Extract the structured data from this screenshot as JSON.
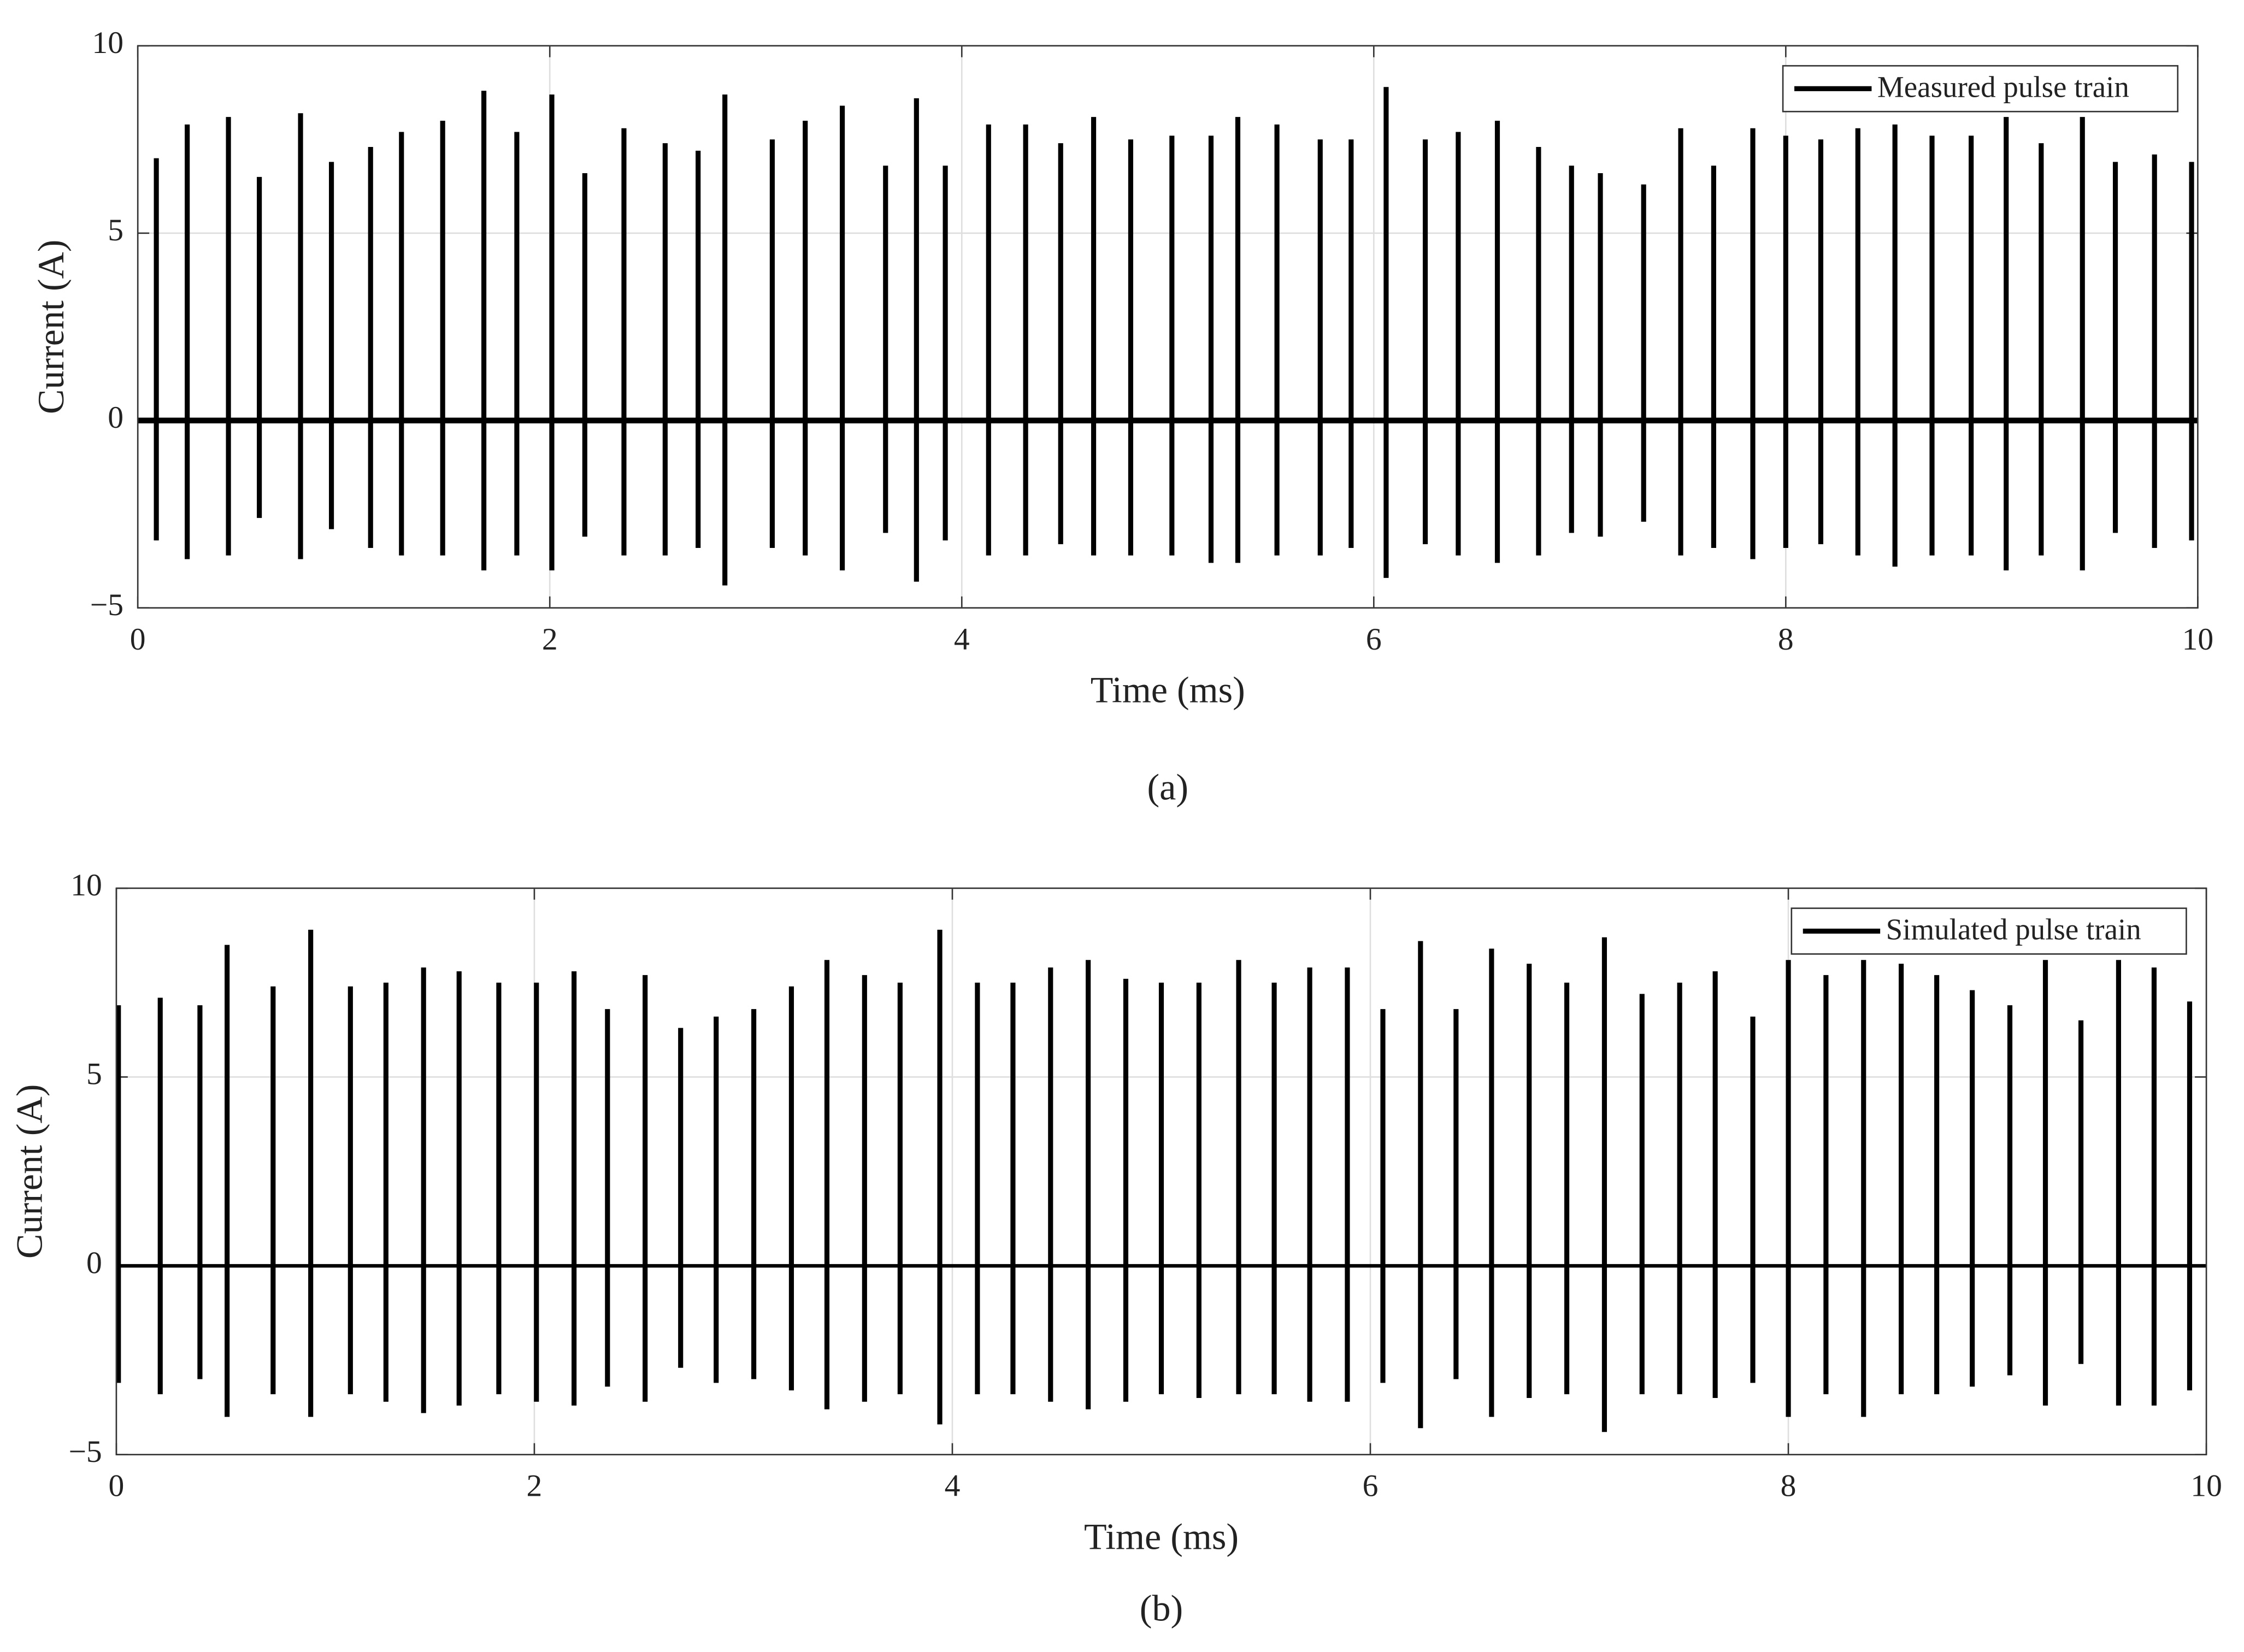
{
  "chart_data": [
    {
      "type": "pulse",
      "caption": "(a)",
      "xlabel": "Time (ms)",
      "ylabel": "Current (A)",
      "xlim": [
        0,
        10
      ],
      "xticks": [
        0,
        2,
        4,
        6,
        8,
        10
      ],
      "ylim": [
        -5,
        10
      ],
      "yticks": [
        {
          "value": -5,
          "label": "−5"
        },
        0,
        5,
        10
      ],
      "grid": true,
      "legend": "upper right",
      "x": [
        0.09,
        0.24,
        0.44,
        0.59,
        0.79,
        0.94,
        1.13,
        1.28,
        1.48,
        1.68,
        1.84,
        2.01,
        2.17,
        2.36,
        2.56,
        2.72,
        2.85,
        3.08,
        3.24,
        3.42,
        3.63,
        3.78,
        3.92,
        4.13,
        4.31,
        4.48,
        4.64,
        4.82,
        5.02,
        5.21,
        5.34,
        5.53,
        5.74,
        5.89,
        6.06,
        6.25,
        6.41,
        6.6,
        6.8,
        6.96,
        7.1,
        7.31,
        7.49,
        7.65,
        7.84,
        8.0,
        8.17,
        8.35,
        8.53,
        8.71,
        8.9,
        9.07,
        9.24,
        9.44,
        9.6,
        9.79,
        9.97
      ],
      "series": [
        {
          "name": "Measured pulse train",
          "color": "#000000",
          "values": [
            7.0,
            7.9,
            8.1,
            6.5,
            8.2,
            6.9,
            7.3,
            7.7,
            8.0,
            8.8,
            7.7,
            8.7,
            6.6,
            7.8,
            7.4,
            7.2,
            8.7,
            7.5,
            8.0,
            8.4,
            6.8,
            8.6,
            6.8,
            7.9,
            7.9,
            7.4,
            8.1,
            7.5,
            7.6,
            7.6,
            8.1,
            7.9,
            7.5,
            7.5,
            8.9,
            7.5,
            7.7,
            8.0,
            7.3,
            6.8,
            6.6,
            6.3,
            7.8,
            6.8,
            7.8,
            7.6,
            7.5,
            7.8,
            7.9,
            7.6,
            7.6,
            8.1,
            7.4,
            8.1,
            6.9,
            7.1,
            6.9
          ],
          "min_values": [
            -3.2,
            -3.7,
            -3.6,
            -2.6,
            -3.7,
            -2.9,
            -3.4,
            -3.6,
            -3.6,
            -4.0,
            -3.6,
            -4.0,
            -3.1,
            -3.6,
            -3.6,
            -3.4,
            -4.4,
            -3.4,
            -3.6,
            -4.0,
            -3.0,
            -4.3,
            -3.2,
            -3.6,
            -3.6,
            -3.3,
            -3.6,
            -3.6,
            -3.6,
            -3.8,
            -3.8,
            -3.6,
            -3.6,
            -3.4,
            -4.2,
            -3.3,
            -3.6,
            -3.8,
            -3.6,
            -3.0,
            -3.1,
            -2.7,
            -3.6,
            -3.4,
            -3.7,
            -3.4,
            -3.3,
            -3.6,
            -3.9,
            -3.6,
            -3.6,
            -4.0,
            -3.6,
            -4.0,
            -3.0,
            -3.4,
            -3.2
          ]
        }
      ]
    },
    {
      "type": "pulse",
      "caption": "(b)",
      "xlabel": "Time (ms)",
      "ylabel": "Current (A)",
      "xlim": [
        0,
        10
      ],
      "xticks": [
        0,
        2,
        4,
        6,
        8,
        10
      ],
      "ylim": [
        -5,
        10
      ],
      "yticks": [
        {
          "value": -5,
          "label": "−5"
        },
        0,
        5,
        10
      ],
      "grid": true,
      "legend": "upper right",
      "x": [
        0.01,
        0.21,
        0.4,
        0.53,
        0.75,
        0.93,
        1.12,
        1.29,
        1.47,
        1.64,
        1.83,
        2.01,
        2.19,
        2.35,
        2.53,
        2.7,
        2.87,
        3.05,
        3.23,
        3.4,
        3.58,
        3.75,
        3.94,
        4.12,
        4.29,
        4.47,
        4.65,
        4.83,
        5.0,
        5.18,
        5.37,
        5.54,
        5.71,
        5.89,
        6.06,
        6.24,
        6.41,
        6.58,
        6.76,
        6.94,
        7.12,
        7.3,
        7.48,
        7.65,
        7.83,
        8.0,
        8.18,
        8.36,
        8.54,
        8.71,
        8.88,
        9.06,
        9.23,
        9.4,
        9.58,
        9.75,
        9.92
      ],
      "series": [
        {
          "name": "Simulated pulse train",
          "color": "#000000",
          "values": [
            6.9,
            7.1,
            6.9,
            8.5,
            7.4,
            8.9,
            7.4,
            7.5,
            7.9,
            7.8,
            7.5,
            7.5,
            7.8,
            6.8,
            7.7,
            6.3,
            6.6,
            6.8,
            7.4,
            8.1,
            7.7,
            7.5,
            8.9,
            7.5,
            7.5,
            7.9,
            8.1,
            7.6,
            7.5,
            7.5,
            8.1,
            7.5,
            7.9,
            7.9,
            6.8,
            8.6,
            6.8,
            8.4,
            8.0,
            7.5,
            8.7,
            7.2,
            7.5,
            7.8,
            6.6,
            8.1,
            7.7,
            8.1,
            8.0,
            7.7,
            7.3,
            6.9,
            8.1,
            6.5,
            8.1,
            7.9,
            7.0
          ],
          "min_values": [
            -3.1,
            -3.4,
            -3.0,
            -4.0,
            -3.4,
            -4.0,
            -3.4,
            -3.6,
            -3.9,
            -3.7,
            -3.4,
            -3.6,
            -3.7,
            -3.2,
            -3.6,
            -2.7,
            -3.1,
            -3.0,
            -3.3,
            -3.8,
            -3.6,
            -3.4,
            -4.2,
            -3.4,
            -3.4,
            -3.6,
            -3.8,
            -3.6,
            -3.4,
            -3.5,
            -3.4,
            -3.4,
            -3.6,
            -3.6,
            -3.1,
            -4.3,
            -3.0,
            -4.0,
            -3.5,
            -3.4,
            -4.4,
            -3.4,
            -3.4,
            -3.5,
            -3.1,
            -4.0,
            -3.4,
            -4.0,
            -3.4,
            -3.4,
            -3.2,
            -2.9,
            -3.7,
            -2.6,
            -3.7,
            -3.7,
            -3.3
          ]
        }
      ]
    }
  ]
}
